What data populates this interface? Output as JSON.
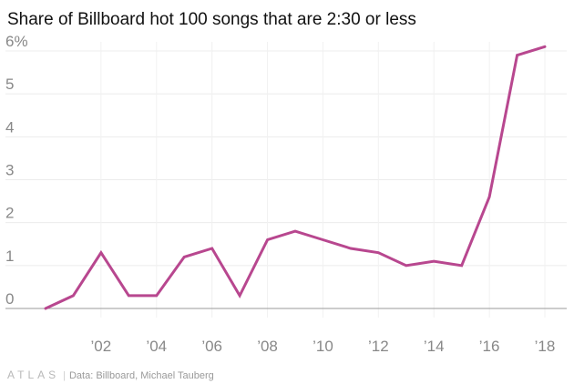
{
  "chart_data": {
    "type": "line",
    "title": "Share of Billboard hot 100 songs that are 2:30 or less",
    "x": [
      2000,
      2001,
      2002,
      2003,
      2004,
      2005,
      2006,
      2007,
      2008,
      2009,
      2010,
      2011,
      2012,
      2013,
      2014,
      2015,
      2016,
      2017,
      2018
    ],
    "series": [
      {
        "values": [
          0,
          0.3,
          1.3,
          0.3,
          0.3,
          1.2,
          1.4,
          0.3,
          1.6,
          1.8,
          1.6,
          1.4,
          1.3,
          1.0,
          1.1,
          1.0,
          2.6,
          5.9,
          6.1
        ]
      }
    ],
    "x_ticks": [
      2002,
      2004,
      2006,
      2008,
      2010,
      2012,
      2014,
      2016,
      2018
    ],
    "x_tick_labels": [
      "’02",
      "’04",
      "’06",
      "’08",
      "’10",
      "’12",
      "’14",
      "’16",
      "’18"
    ],
    "y_ticks": [
      0,
      1,
      2,
      3,
      4,
      5,
      6
    ],
    "y_tick_labels": [
      "0",
      "1",
      "2",
      "3",
      "4",
      "5",
      "6%"
    ],
    "ylim": [
      0,
      6
    ],
    "xlim": [
      2000,
      2018
    ],
    "grid": true,
    "line_color": "#b8478f"
  },
  "footer": {
    "brand": "ATLAS",
    "source": "Data:  Billboard, Michael Tauberg"
  }
}
